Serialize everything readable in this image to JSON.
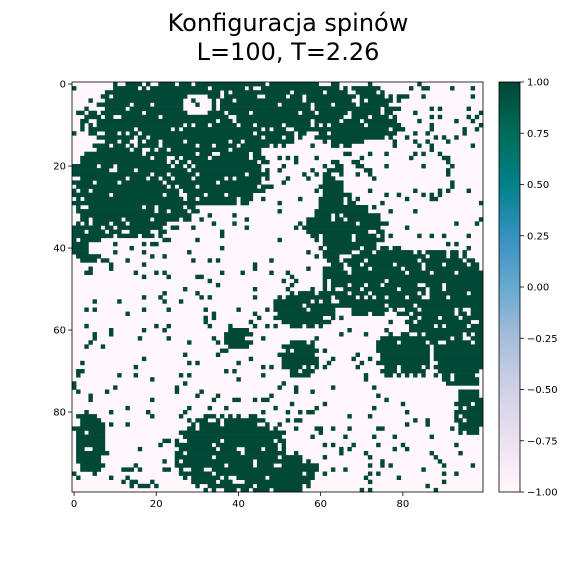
{
  "chart_data": {
    "type": "heatmap",
    "title_lines": [
      "Konfiguracja spinów",
      "L=100, T=2.26"
    ],
    "lattice_size": 100,
    "x_ticks": [
      0,
      20,
      40,
      60,
      80
    ],
    "y_ticks": [
      0,
      20,
      40,
      60,
      80
    ],
    "xlim": [
      -0.5,
      99.5
    ],
    "ylim": [
      99.5,
      -0.5
    ],
    "colorbar": {
      "ticks": [
        1.0,
        0.75,
        0.5,
        0.25,
        0.0,
        -0.25,
        -0.5,
        -0.75,
        -1.0
      ],
      "tick_labels": [
        "1.00",
        "0.75",
        "0.50",
        "0.25",
        "0.00",
        "−0.25",
        "−0.50",
        "−0.75",
        "−1.00"
      ],
      "range": [
        -1,
        1
      ],
      "colormap": "PuBuGn"
    },
    "colors": {
      "spin_up": "#024837",
      "spin_down": "#fff7fb"
    },
    "values": [
      -1,
      1
    ],
    "domains_spin_up": [
      {
        "cx": 30,
        "cy": 8,
        "rx": 30,
        "ry": 10
      },
      {
        "cx": 52,
        "cy": 5,
        "rx": 18,
        "ry": 7
      },
      {
        "cx": 68,
        "cy": 8,
        "rx": 12,
        "ry": 8
      },
      {
        "cx": 15,
        "cy": 25,
        "rx": 16,
        "ry": 13
      },
      {
        "cx": 35,
        "cy": 22,
        "rx": 13,
        "ry": 8
      },
      {
        "cx": 5,
        "cy": 38,
        "rx": 6,
        "ry": 6
      },
      {
        "cx": 67,
        "cy": 32,
        "rx": 9,
        "ry": 14
      },
      {
        "cx": 74,
        "cy": 48,
        "rx": 14,
        "ry": 9
      },
      {
        "cx": 90,
        "cy": 52,
        "rx": 11,
        "ry": 12
      },
      {
        "cx": 94,
        "cy": 64,
        "rx": 7,
        "ry": 10
      },
      {
        "cx": 56,
        "cy": 55,
        "rx": 8,
        "ry": 5
      },
      {
        "cx": 55,
        "cy": 67,
        "rx": 5,
        "ry": 5
      },
      {
        "cx": 80,
        "cy": 66,
        "rx": 7,
        "ry": 6
      },
      {
        "cx": 40,
        "cy": 62,
        "rx": 4,
        "ry": 3
      },
      {
        "cx": 38,
        "cy": 90,
        "rx": 14,
        "ry": 10
      },
      {
        "cx": 50,
        "cy": 95,
        "rx": 10,
        "ry": 5
      },
      {
        "cx": 4,
        "cy": 88,
        "rx": 4,
        "ry": 8
      },
      {
        "cx": 60,
        "cy": 35,
        "rx": 5,
        "ry": 3
      },
      {
        "cx": 96,
        "cy": 80,
        "rx": 4,
        "ry": 6
      }
    ],
    "domains_spin_down": [
      {
        "cx": 4,
        "cy": 5,
        "rx": 4,
        "ry": 3
      },
      {
        "cx": 88,
        "cy": 7,
        "rx": 11,
        "ry": 7
      },
      {
        "cx": 78,
        "cy": 22,
        "rx": 15,
        "ry": 10
      },
      {
        "cx": 30,
        "cy": 5,
        "rx": 4,
        "ry": 3
      },
      {
        "cx": 15,
        "cy": 40,
        "rx": 12,
        "ry": 3
      }
    ]
  }
}
